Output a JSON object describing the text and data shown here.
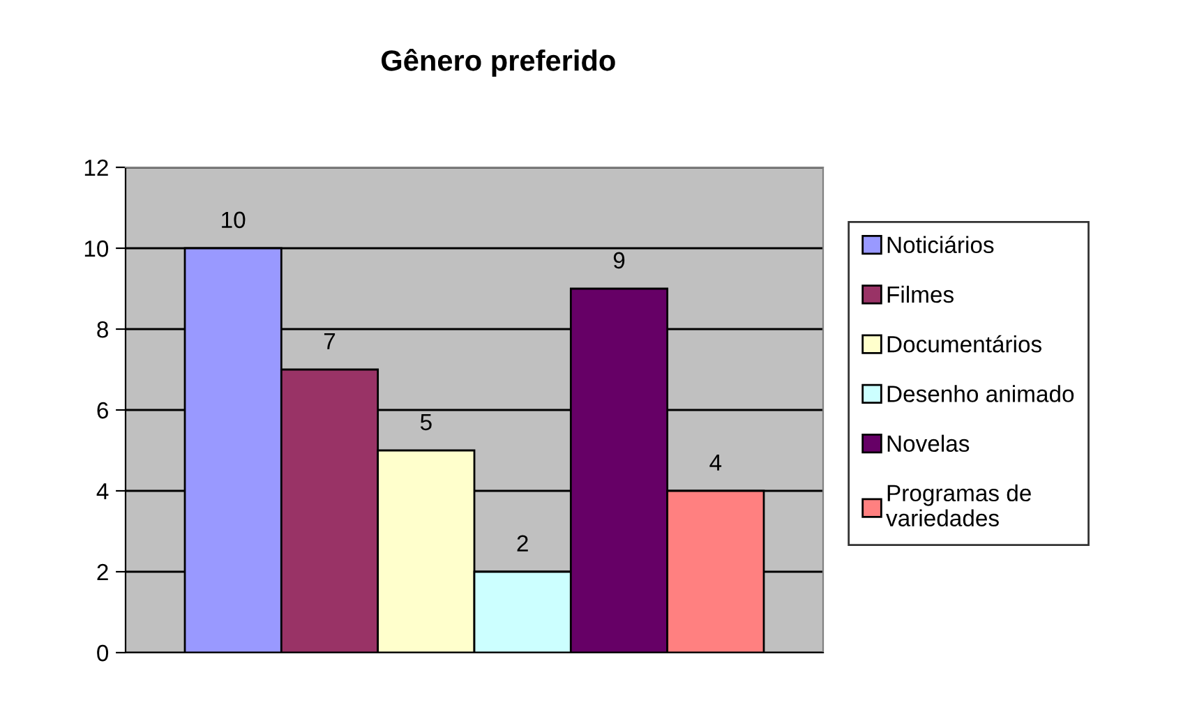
{
  "chart_data": {
    "type": "bar",
    "title": "Gênero preferido",
    "categories": [
      null
    ],
    "series": [
      {
        "name": "Noticiários",
        "color": "#9999ff",
        "values": [
          10
        ]
      },
      {
        "name": "Filmes",
        "color": "#993366",
        "values": [
          7
        ]
      },
      {
        "name": "Documentários",
        "color": "#ffffcc",
        "values": [
          5
        ]
      },
      {
        "name": "Desenho animado",
        "color": "#ccffff",
        "values": [
          2
        ]
      },
      {
        "name": "Novelas",
        "color": "#660066",
        "values": [
          9
        ]
      },
      {
        "name": "Programas de variedades",
        "color": "#ff8080",
        "values": [
          4
        ]
      }
    ],
    "ylim": [
      0,
      12
    ],
    "yticks": [
      0,
      2,
      4,
      6,
      8,
      10,
      12
    ],
    "grid": "y",
    "legend": "right",
    "data_labels": true
  }
}
